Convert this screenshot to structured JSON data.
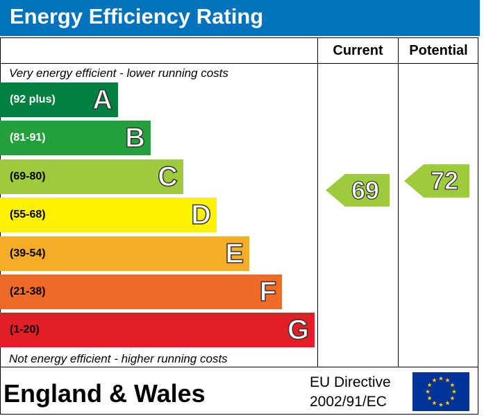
{
  "header": {
    "title": "Energy Efficiency Rating"
  },
  "columns": {
    "current": "Current",
    "potential": "Potential"
  },
  "notes": {
    "top": "Very energy efficient - lower running costs",
    "bottom": "Not energy efficient - higher running costs"
  },
  "footer": {
    "region": "England & Wales",
    "directive_line1": "EU Directive",
    "directive_line2": "2002/91/EC",
    "flag_icon": "eu-flag-icon"
  },
  "chart_data": {
    "type": "bar",
    "title": "Energy Efficiency Rating",
    "categories": [
      "A",
      "B",
      "C",
      "D",
      "E",
      "F",
      "G"
    ],
    "bands": [
      {
        "letter": "A",
        "range": "(92 plus)",
        "min": 92,
        "max": 100,
        "color": "#008040",
        "text_color": "#ffffff"
      },
      {
        "letter": "B",
        "range": "(81-91)",
        "min": 81,
        "max": 91,
        "color": "#23a03b",
        "text_color": "#ffffff"
      },
      {
        "letter": "C",
        "range": "(69-80)",
        "min": 69,
        "max": 80,
        "color": "#9dcb3c",
        "text_color": "#000000"
      },
      {
        "letter": "D",
        "range": "(55-68)",
        "min": 55,
        "max": 68,
        "color": "#fff200",
        "text_color": "#000000"
      },
      {
        "letter": "E",
        "range": "(39-54)",
        "min": 39,
        "max": 54,
        "color": "#f7ac27",
        "text_color": "#000000"
      },
      {
        "letter": "F",
        "range": "(21-38)",
        "min": 21,
        "max": 38,
        "color": "#ef6a26",
        "text_color": "#000000"
      },
      {
        "letter": "G",
        "range": "(1-20)",
        "min": 1,
        "max": 20,
        "color": "#e21f26",
        "text_color": "#000000"
      }
    ],
    "current": {
      "value": 69,
      "band": "C",
      "color": "#9dcb3c"
    },
    "potential": {
      "value": 72,
      "band": "C",
      "color": "#9dcb3c"
    }
  }
}
